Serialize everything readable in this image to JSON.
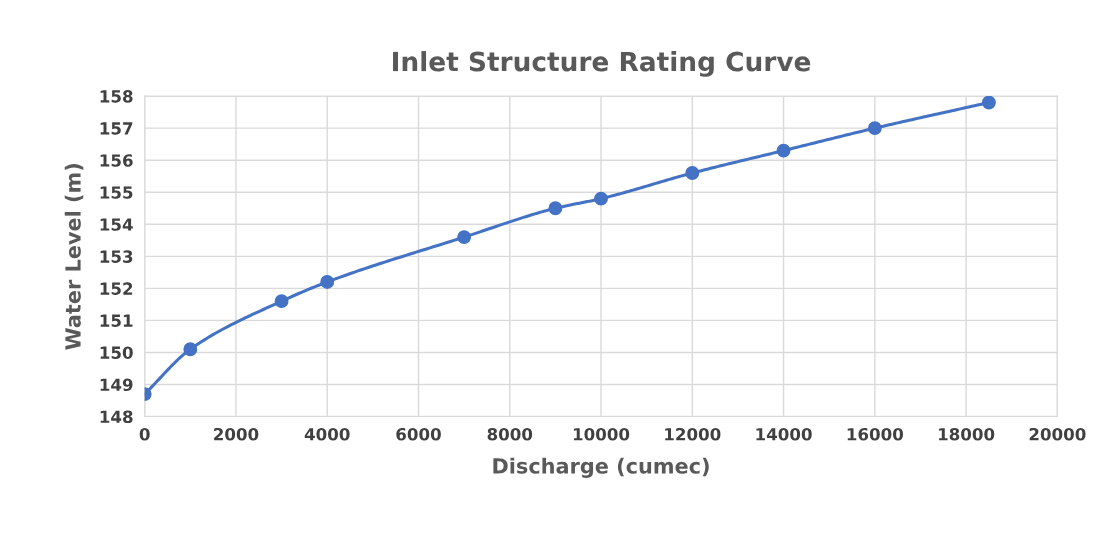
{
  "chart_data": {
    "type": "line",
    "title": "Inlet Structure Rating Curve",
    "xlabel": "Discharge (cumec)",
    "ylabel": "Water Level (m)",
    "x": [
      0,
      1000,
      3000,
      4000,
      7000,
      9000,
      10000,
      12000,
      14000,
      16000,
      18500
    ],
    "series": [
      {
        "color": "#4472c4",
        "values": [
          148.7,
          150.1,
          151.6,
          152.2,
          153.6,
          154.5,
          154.8,
          155.6,
          156.3,
          157.0,
          157.8
        ]
      }
    ],
    "xlim": [
      0,
      20000
    ],
    "xticks": [
      0,
      2000,
      4000,
      6000,
      8000,
      10000,
      12000,
      14000,
      16000,
      18000,
      20000
    ],
    "ylim": [
      148,
      158
    ],
    "yticks": [
      148,
      149,
      150,
      151,
      152,
      153,
      154,
      155,
      156,
      157,
      158
    ],
    "grid": true,
    "marker": "circle",
    "line_style": "solid"
  }
}
